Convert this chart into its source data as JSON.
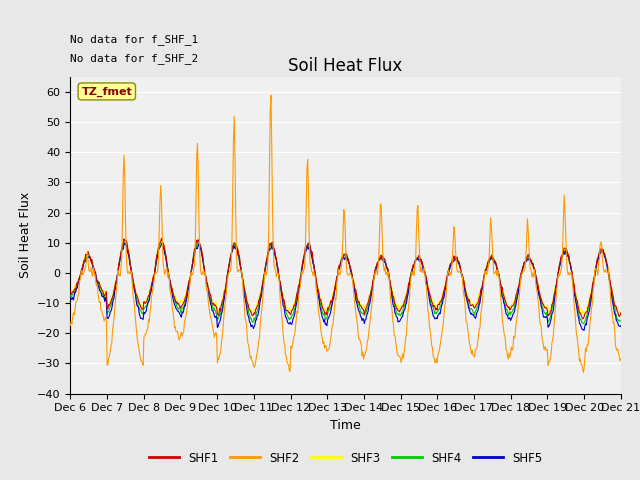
{
  "title": "Soil Heat Flux",
  "ylabel": "Soil Heat Flux",
  "xlabel": "Time",
  "ylim": [
    -40,
    65
  ],
  "yticks": [
    -40,
    -30,
    -20,
    -10,
    0,
    10,
    20,
    30,
    40,
    50,
    60
  ],
  "annotation_text1": "No data for f_SHF_1",
  "annotation_text2": "No data for f_SHF_2",
  "legend_label": "TZ_fmet",
  "legend_colors": {
    "SHF1": "#cc0000",
    "SHF2": "#ff9900",
    "SHF3": "#ffff00",
    "SHF4": "#00cc00",
    "SHF5": "#0000cc"
  },
  "background_color": "#e8e8e8",
  "plot_background": "#f0f0f0",
  "title_fontsize": 12,
  "axis_fontsize": 9,
  "tick_fontsize": 8,
  "n_days": 15,
  "start_day": 6,
  "day_peaks_shf2": [
    6,
    39,
    29,
    44,
    51,
    60,
    37,
    22,
    24,
    23,
    15,
    18,
    17,
    25,
    11
  ],
  "day_night_shf2": [
    -16,
    -30,
    -22,
    -21,
    -30,
    -32,
    -25,
    -26,
    -28,
    -30,
    -27,
    -28,
    -26,
    -32,
    -28
  ],
  "day_peaks_others": [
    7,
    12,
    12,
    12,
    11,
    11,
    11,
    7,
    6,
    6,
    6,
    6,
    6,
    9,
    9
  ],
  "day_night_others": [
    -10,
    -17,
    -15,
    -16,
    -20,
    -19,
    -19,
    -17,
    -18,
    -17,
    -16,
    -17,
    -17,
    -21,
    -20
  ]
}
